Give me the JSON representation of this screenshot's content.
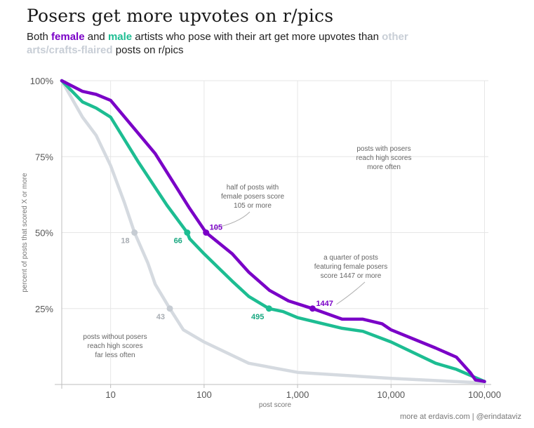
{
  "title": "Posers get more upvotes on r/pics",
  "subtitle": {
    "t1": "Both ",
    "female": "female",
    "t2": " and ",
    "male": "male",
    "t3": " artists who pose with their art get more upvotes than ",
    "other": "other arts/crafts-flaired",
    "t4": " posts on r/pics"
  },
  "credit": "more at erdavis.com | @erindataviz",
  "colors": {
    "female": "#7a00c7",
    "male": "#1dbd92",
    "other": "#d5dae0",
    "grid": "#e6e6e6",
    "axis": "#bdbdbd"
  },
  "chart_data": {
    "type": "line",
    "xlabel": "post score",
    "ylabel": "percent of posts that scored X or more",
    "xscale": "log",
    "xlim": [
      3,
      110000
    ],
    "ylim": [
      0,
      100
    ],
    "xticks": [
      {
        "value": 10,
        "label": "10"
      },
      {
        "value": 100,
        "label": "100"
      },
      {
        "value": 1000,
        "label": "1,000"
      },
      {
        "value": 10000,
        "label": "10,000"
      },
      {
        "value": 100000,
        "label": "100,000"
      }
    ],
    "yticks": [
      {
        "value": 25,
        "label": "25%"
      },
      {
        "value": 50,
        "label": "50%"
      },
      {
        "value": 75,
        "label": "75%"
      },
      {
        "value": 100,
        "label": "100%"
      }
    ],
    "grid": true,
    "series": [
      {
        "key": "other",
        "color": "#d5dae0",
        "points": [
          [
            3,
            100
          ],
          [
            5,
            88
          ],
          [
            7,
            82
          ],
          [
            10,
            72
          ],
          [
            14,
            60
          ],
          [
            18,
            50
          ],
          [
            25,
            40
          ],
          [
            30,
            33
          ],
          [
            43,
            25
          ],
          [
            60,
            18
          ],
          [
            100,
            14
          ],
          [
            300,
            7
          ],
          [
            1000,
            4
          ],
          [
            10000,
            2
          ],
          [
            100000,
            0.5
          ]
        ]
      },
      {
        "key": "male",
        "color": "#1dbd92",
        "points": [
          [
            3,
            100
          ],
          [
            5,
            93
          ],
          [
            7,
            91
          ],
          [
            10,
            88
          ],
          [
            20,
            73
          ],
          [
            40,
            59
          ],
          [
            66,
            50
          ],
          [
            70,
            48
          ],
          [
            100,
            43
          ],
          [
            200,
            34
          ],
          [
            300,
            29
          ],
          [
            495,
            25
          ],
          [
            700,
            24
          ],
          [
            1000,
            22
          ],
          [
            3000,
            18.5
          ],
          [
            5000,
            17.5
          ],
          [
            10000,
            14
          ],
          [
            30000,
            7
          ],
          [
            50000,
            5
          ],
          [
            100000,
            1
          ]
        ]
      },
      {
        "key": "female",
        "color": "#7a00c7",
        "points": [
          [
            3,
            100
          ],
          [
            5,
            96.5
          ],
          [
            7,
            95.5
          ],
          [
            10,
            93.5
          ],
          [
            30,
            76
          ],
          [
            70,
            58
          ],
          [
            105,
            50
          ],
          [
            200,
            43
          ],
          [
            300,
            37
          ],
          [
            500,
            31
          ],
          [
            800,
            27.5
          ],
          [
            1447,
            25
          ],
          [
            3000,
            21.5
          ],
          [
            5000,
            21.5
          ],
          [
            8000,
            20
          ],
          [
            10000,
            18
          ],
          [
            30000,
            12
          ],
          [
            50000,
            9
          ],
          [
            70000,
            4
          ],
          [
            80000,
            1.5
          ],
          [
            100000,
            1
          ]
        ]
      }
    ],
    "markers": [
      {
        "key": "other",
        "x": 18,
        "y": 50,
        "label": "18",
        "color": "#c6ccd3",
        "label_color": "#a8adb3"
      },
      {
        "key": "other",
        "x": 43,
        "y": 25,
        "label": "43",
        "color": "#c6ccd3",
        "label_color": "#a8adb3"
      },
      {
        "key": "male",
        "x": 66,
        "y": 50,
        "label": "66",
        "color": "#1dbd92",
        "label_color": "#19a881"
      },
      {
        "key": "male",
        "x": 495,
        "y": 25,
        "label": "495",
        "color": "#1dbd92",
        "label_color": "#19a881"
      },
      {
        "key": "female",
        "x": 105,
        "y": 50,
        "label": "105",
        "color": "#7a00c7",
        "label_color": "#7a00c7"
      },
      {
        "key": "female",
        "x": 1447,
        "y": 25,
        "label": "1447",
        "color": "#7a00c7",
        "label_color": "#7a00c7"
      }
    ],
    "annotations": [
      {
        "name": "annotation-posers-high-scores",
        "lines": [
          "posts with posers",
          "reach high scores",
          "more often"
        ]
      },
      {
        "name": "annotation-half-female",
        "lines": [
          "half of posts with",
          "female posers score",
          "105 or more"
        ]
      },
      {
        "name": "annotation-quarter-female",
        "lines": [
          "a quarter of posts",
          "featuring female posers",
          "score 1447 or more"
        ]
      },
      {
        "name": "annotation-without-posers",
        "lines": [
          "posts without posers",
          "reach high scores",
          "far less often"
        ]
      }
    ]
  }
}
